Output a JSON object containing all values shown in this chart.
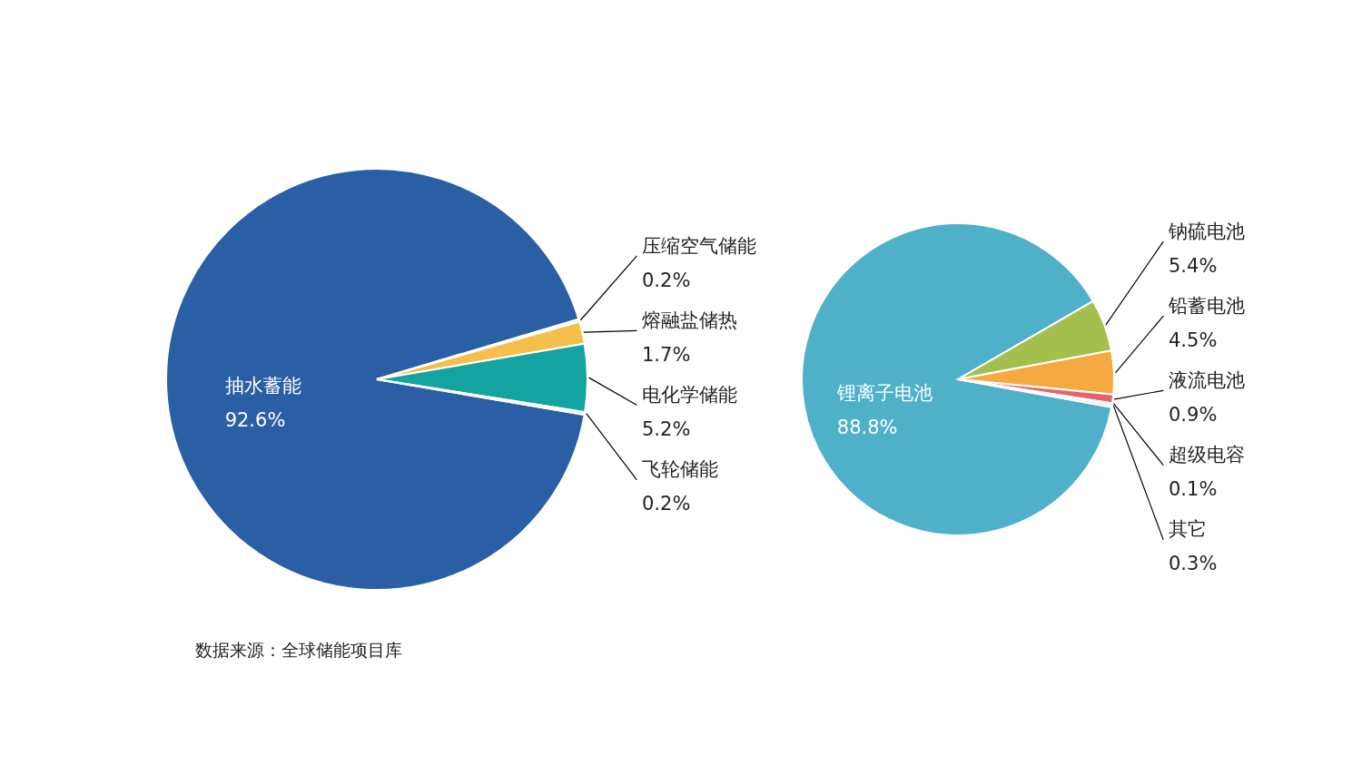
{
  "chart_data": [
    {
      "type": "pie",
      "categories": [
        "抽水蓄能",
        "压缩空气储能",
        "熔融盐储热",
        "电化学储能",
        "飞轮储能"
      ],
      "values": [
        92.6,
        0.2,
        1.7,
        5.2,
        0.2
      ],
      "value_labels": [
        "92.6%",
        "0.2%",
        "1.7%",
        "5.2%",
        "0.2%"
      ],
      "colors": [
        "#2a5fa5",
        "#e6e6e6",
        "#f4bf4a",
        "#13a3a0",
        "#e6e6e6"
      ],
      "annotations": [
        "数据来源：全球储能项目库"
      ]
    },
    {
      "type": "pie",
      "categories": [
        "锂离子电池",
        "钠硫电池",
        "铅蓄电池",
        "液流电池",
        "超级电容",
        "其它"
      ],
      "values": [
        88.8,
        5.4,
        4.5,
        0.9,
        0.1,
        0.3
      ],
      "value_labels": [
        "88.8%",
        "5.4%",
        "4.5%",
        "0.9%",
        "0.1%",
        "0.3%"
      ],
      "colors": [
        "#4fb0ca",
        "#a5bf4f",
        "#f7a941",
        "#e8606c",
        "#e6e6e6",
        "#e6e6e6"
      ]
    }
  ]
}
